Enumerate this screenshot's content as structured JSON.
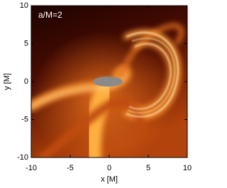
{
  "chart_data": {
    "type": "density",
    "annotation": "a/M=2",
    "x_label": "x [M]",
    "y_label": "y [M]",
    "xlim": [
      -10,
      10
    ],
    "ylim": [
      -10,
      10
    ],
    "xticks": [
      -10,
      -5,
      0,
      5,
      10
    ],
    "yticks": [
      -10,
      -5,
      0,
      5,
      10
    ]
  }
}
